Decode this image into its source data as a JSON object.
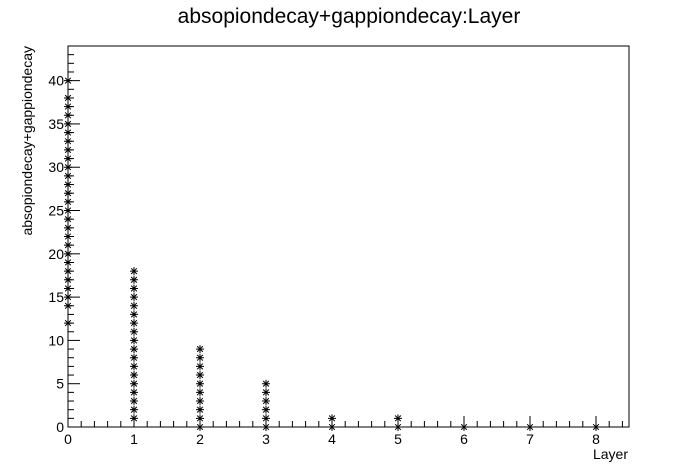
{
  "chart_data": {
    "type": "scatter",
    "title": "absopiondecay+gappiondecay:Layer",
    "xlabel": "Layer",
    "ylabel": "absopiondecay+gappiondecay",
    "xlim": [
      0,
      8.5
    ],
    "ylim": [
      0,
      44
    ],
    "x_ticks": [
      "0",
      "1",
      "2",
      "3",
      "4",
      "5",
      "6",
      "7",
      "8"
    ],
    "y_ticks": [
      "0",
      "5",
      "10",
      "15",
      "20",
      "25",
      "30",
      "35",
      "40"
    ],
    "marker": "star",
    "marker_color": "#000000",
    "grid": false,
    "points": [
      [
        0,
        12
      ],
      [
        0,
        14
      ],
      [
        0,
        15
      ],
      [
        0,
        16
      ],
      [
        0,
        17
      ],
      [
        0,
        18
      ],
      [
        0,
        19
      ],
      [
        0,
        20
      ],
      [
        0,
        21
      ],
      [
        0,
        22
      ],
      [
        0,
        23
      ],
      [
        0,
        24
      ],
      [
        0,
        25
      ],
      [
        0,
        26
      ],
      [
        0,
        27
      ],
      [
        0,
        28
      ],
      [
        0,
        29
      ],
      [
        0,
        30
      ],
      [
        0,
        31
      ],
      [
        0,
        32
      ],
      [
        0,
        33
      ],
      [
        0,
        34
      ],
      [
        0,
        35
      ],
      [
        0,
        36
      ],
      [
        0,
        37
      ],
      [
        0,
        38
      ],
      [
        0,
        40
      ],
      [
        1,
        1
      ],
      [
        1,
        2
      ],
      [
        1,
        3
      ],
      [
        1,
        4
      ],
      [
        1,
        5
      ],
      [
        1,
        6
      ],
      [
        1,
        7
      ],
      [
        1,
        8
      ],
      [
        1,
        9
      ],
      [
        1,
        10
      ],
      [
        1,
        11
      ],
      [
        1,
        12
      ],
      [
        1,
        13
      ],
      [
        1,
        14
      ],
      [
        1,
        15
      ],
      [
        1,
        16
      ],
      [
        1,
        17
      ],
      [
        1,
        18
      ],
      [
        2,
        0
      ],
      [
        2,
        1
      ],
      [
        2,
        2
      ],
      [
        2,
        3
      ],
      [
        2,
        4
      ],
      [
        2,
        5
      ],
      [
        2,
        6
      ],
      [
        2,
        7
      ],
      [
        2,
        8
      ],
      [
        2,
        9
      ],
      [
        3,
        0
      ],
      [
        3,
        1
      ],
      [
        3,
        2
      ],
      [
        3,
        3
      ],
      [
        3,
        4
      ],
      [
        3,
        5
      ],
      [
        4,
        0
      ],
      [
        4,
        1
      ],
      [
        5,
        0
      ],
      [
        5,
        1
      ],
      [
        6,
        0
      ],
      [
        7,
        0
      ],
      [
        8,
        0
      ]
    ]
  }
}
